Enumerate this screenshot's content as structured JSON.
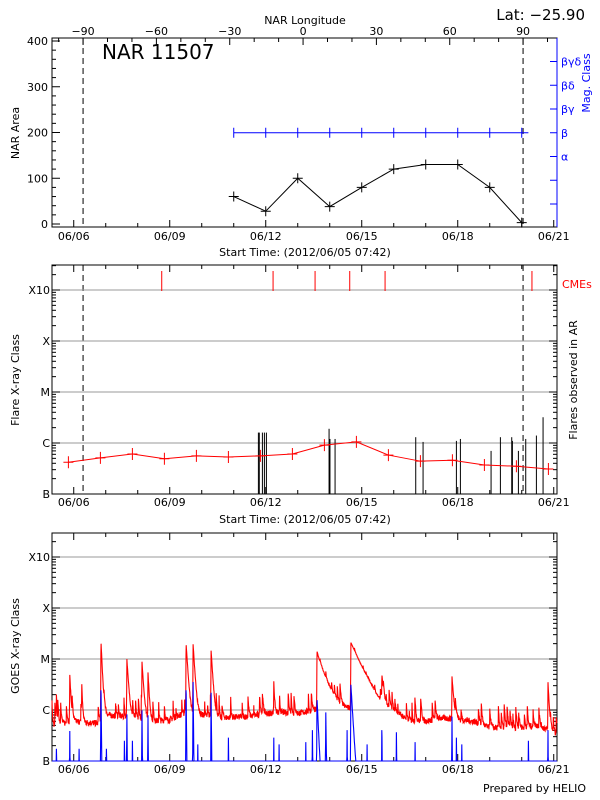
{
  "header": {
    "lat_label": "Lat: −25.90",
    "region_label": "NAR 11507",
    "longitude_axis_label": "NAR Longitude",
    "footer": "Prepared by HELIO"
  },
  "colors": {
    "area": "#000000",
    "mag_class": "#0000ff",
    "flare_mean": "#ff0000",
    "cme": "#ff0000",
    "goes_long": "#ff0000",
    "goes_short": "#0000ff",
    "grid": "#999999"
  },
  "chart_data": [
    {
      "type": "line",
      "ylabel": "NAR Area",
      "xlabel": "Start Time: (2012/06/05 07:42)",
      "right_label": "Mag. Class",
      "x_tick_labels": [
        "06/06",
        "06/09",
        "06/12",
        "06/15",
        "06/18",
        "06/21"
      ],
      "x_range": [
        "2012-06-05T07:42",
        "2012-06-21T02:00"
      ],
      "ylim": [
        0,
        400
      ],
      "y_ticks": [
        0,
        100,
        200,
        300,
        400
      ],
      "longitude_ticks": [
        -90,
        -60,
        -30,
        0,
        30,
        60,
        90
      ],
      "limb_crossings": [
        "2012-06-06T07:00",
        "2012-06-20T01:00"
      ],
      "mag_class_ticks": [
        "",
        "",
        "α",
        "β",
        "βγ",
        "βδ",
        "βγδ"
      ],
      "series": [
        {
          "x": [
            "2012-06-11T00:00",
            "2012-06-12T00:00",
            "2012-06-13T00:00",
            "2012-06-14T00:00",
            "2012-06-15T00:00",
            "2012-06-16T00:00",
            "2012-06-17T00:00",
            "2012-06-18T00:00",
            "2012-06-19T00:00",
            "2012-06-20T00:00"
          ],
          "values": [
            60,
            28,
            100,
            38,
            80,
            120,
            130,
            130,
            80,
            3
          ]
        },
        {
          "x": [
            "2012-06-11T00:00",
            "2012-06-12T00:00",
            "2012-06-13T00:00",
            "2012-06-14T00:00",
            "2012-06-15T00:00",
            "2012-06-16T00:00",
            "2012-06-17T00:00",
            "2012-06-18T00:00",
            "2012-06-19T00:00",
            "2012-06-20T00:00",
            "2012-06-20T05:00"
          ],
          "values": [
            "β",
            "β",
            "β",
            "β",
            "β",
            "β",
            "β",
            "β",
            "β",
            "β",
            "β"
          ]
        }
      ]
    },
    {
      "type": "line",
      "ylabel": "Flare X-ray Class",
      "right_label": "Flares observed in AR",
      "xlabel": "Start Time: (2012/06/05 07:42)",
      "cme_label": "CMEs",
      "y_scale": "log",
      "y_tick_labels": [
        "B",
        "C",
        "M",
        "X",
        "X10"
      ],
      "y_tick_values": [
        1e-07,
        1e-06,
        1e-05,
        0.0001,
        0.001
      ],
      "mean_flare_level": {
        "x": [
          "2012-06-05T20:00",
          "2012-06-06T20:00",
          "2012-06-07T20:00",
          "2012-06-08T20:00",
          "2012-06-09T20:00",
          "2012-06-10T20:00",
          "2012-06-11T20:00",
          "2012-06-12T20:00",
          "2012-06-13T20:00",
          "2012-06-14T20:00",
          "2012-06-15T20:00",
          "2012-06-16T20:00",
          "2012-06-17T20:00",
          "2012-06-18T20:00",
          "2012-06-19T20:00",
          "2012-06-20T20:00"
        ],
        "values": [
          4.2e-07,
          5.1e-07,
          6.1e-07,
          4.9e-07,
          5.6e-07,
          5.3e-07,
          5.6e-07,
          6.1e-07,
          9.1e-07,
          1.05e-06,
          5.8e-07,
          4.4e-07,
          4.6e-07,
          3.7e-07,
          3.5e-07,
          3.1e-07
        ]
      },
      "flares": {
        "x": [
          "2012-06-11T18:30",
          "2012-06-11T19:10",
          "2012-06-11T21:30",
          "2012-06-11T23:00",
          "2012-06-12T00:30",
          "2012-06-13T23:30",
          "2012-06-14T00:10",
          "2012-06-14T04:00",
          "2012-06-16T16:30",
          "2012-06-16T22:00",
          "2012-06-17T23:00",
          "2012-06-18T02:00",
          "2012-06-19T01:00",
          "2012-06-19T08:00",
          "2012-06-19T16:30",
          "2012-06-19T17:00",
          "2012-06-19T21:30",
          "2012-06-20T03:00",
          "2012-06-20T11:00",
          "2012-06-20T16:00"
        ],
        "values": [
          1.6e-06,
          1.6e-06,
          1.6e-06,
          1.6e-06,
          1.6e-06,
          1.9e-06,
          1.2e-06,
          1.2e-06,
          1.3e-06,
          1.05e-06,
          1.1e-06,
          1.2e-06,
          7e-07,
          1.3e-06,
          1.3e-06,
          1.1e-06,
          7e-07,
          1.2e-06,
          1.4e-06,
          3.2e-06
        ]
      },
      "cmes": [
        "2012-06-08T18:00",
        "2012-06-12T05:30",
        "2012-06-13T13:00",
        "2012-06-14T15:00",
        "2012-06-15T17:30",
        "2012-06-20T07:40"
      ],
      "limb_crossings": [
        "2012-06-06T07:00",
        "2012-06-20T01:00"
      ]
    },
    {
      "type": "line",
      "ylabel": "GOES X-ray Class",
      "y_scale": "log",
      "y_tick_labels": [
        "B",
        "C",
        "M",
        "X",
        "X10"
      ],
      "y_tick_values": [
        1e-07,
        1e-06,
        1e-05,
        0.0001,
        0.001
      ],
      "long_channel_baseline": [
        [
          "2012-06-05T07:42",
          5e-07
        ],
        [
          "2012-06-06T00:00",
          6e-07
        ],
        [
          "2012-06-06T18:00",
          5.5e-07
        ],
        [
          "2012-06-07T00:00",
          8e-07
        ],
        [
          "2012-06-08T00:00",
          7e-07
        ],
        [
          "2012-06-08T12:00",
          6e-07
        ],
        [
          "2012-06-09T00:00",
          6.5e-07
        ],
        [
          "2012-06-09T12:00",
          9e-07
        ],
        [
          "2012-06-10T12:00",
          7e-07
        ],
        [
          "2012-06-11T12:00",
          7.5e-07
        ],
        [
          "2012-06-12T00:00",
          8.5e-07
        ],
        [
          "2012-06-12T12:00",
          9e-07
        ],
        [
          "2012-06-13T00:00",
          8.5e-07
        ],
        [
          "2012-06-13T12:00",
          1e-06
        ],
        [
          "2012-06-14T00:00",
          1.1e-06
        ],
        [
          "2012-06-14T12:00",
          1e-06
        ],
        [
          "2012-06-15T06:00",
          1.1e-06
        ],
        [
          "2012-06-15T12:00",
          8e-07
        ],
        [
          "2012-06-16T00:00",
          8e-07
        ],
        [
          "2012-06-16T12:00",
          6e-07
        ],
        [
          "2012-06-17T00:00",
          6e-07
        ],
        [
          "2012-06-17T12:00",
          7e-07
        ],
        [
          "2012-06-18T00:00",
          6.5e-07
        ],
        [
          "2012-06-18T12:00",
          6e-07
        ],
        [
          "2012-06-19T00:00",
          4.5e-07
        ],
        [
          "2012-06-20T00:00",
          4.5e-07
        ],
        [
          "2012-06-20T12:00",
          5e-07
        ],
        [
          "2012-06-21T02:00",
          3.5e-07
        ]
      ],
      "long_channel_peaks": [
        [
          "2012-06-05T11:00",
          1.5e-06,
          1
        ],
        [
          "2012-06-05T21:00",
          4.5e-06,
          1.5
        ],
        [
          "2012-06-06T06:00",
          2.5e-06,
          1
        ],
        [
          "2012-06-06T20:25",
          2.2e-05,
          1.5
        ],
        [
          "2012-06-07T15:50",
          9.5e-06,
          2
        ],
        [
          "2012-06-08T03:10",
          8e-06,
          2
        ],
        [
          "2012-06-08T07:40",
          5e-06,
          1.5
        ],
        [
          "2012-06-09T12:15",
          2e-05,
          2
        ],
        [
          "2012-06-09T17:30",
          1.9e-05,
          2
        ],
        [
          "2012-06-10T07:00",
          1.4e-05,
          2
        ],
        [
          "2012-06-12T06:00",
          2e-06,
          1
        ],
        [
          "2012-06-13T14:25",
          1.25e-05,
          10
        ],
        [
          "2012-06-14T15:50",
          2e-05,
          14
        ],
        [
          "2012-06-15T15:05",
          3.5e-06,
          2
        ],
        [
          "2012-06-17T19:40",
          4e-06,
          2
        ],
        [
          "2012-06-20T19:40",
          3.2e-06,
          1.5
        ]
      ],
      "short_channel_peaks": [
        [
          "2012-06-05T11:00",
          2e-07,
          0.5
        ],
        [
          "2012-06-05T21:00",
          4.8e-07,
          0.5
        ],
        [
          "2012-06-06T04:00",
          2e-07,
          0.5
        ],
        [
          "2012-06-06T20:25",
          4.4e-06,
          0.6
        ],
        [
          "2012-06-07T00:30",
          2e-07,
          0.5
        ],
        [
          "2012-06-07T14:00",
          3e-07,
          0.5
        ],
        [
          "2012-06-07T15:50",
          1e-06,
          0.6
        ],
        [
          "2012-06-07T20:00",
          3e-07,
          0.5
        ],
        [
          "2012-06-08T03:10",
          1.2e-06,
          0.6
        ],
        [
          "2012-06-08T07:40",
          1e-06,
          0.5
        ],
        [
          "2012-06-09T12:15",
          4.4e-06,
          0.6
        ],
        [
          "2012-06-09T17:30",
          4.4e-06,
          0.6
        ],
        [
          "2012-06-09T21:00",
          2.5e-07,
          0.5
        ],
        [
          "2012-06-10T07:00",
          2.7e-06,
          0.6
        ],
        [
          "2012-06-10T20:00",
          3.5e-07,
          0.5
        ],
        [
          "2012-06-12T06:00",
          3.5e-07,
          0.5
        ],
        [
          "2012-06-12T10:00",
          2.5e-07,
          0.5
        ],
        [
          "2012-06-13T06:00",
          2.8e-07,
          0.5
        ],
        [
          "2012-06-13T11:00",
          5e-07,
          0.5
        ],
        [
          "2012-06-13T14:25",
          1.8e-06,
          3
        ],
        [
          "2012-06-13T21:00",
          1e-06,
          1
        ],
        [
          "2012-06-14T13:00",
          5e-07,
          0.5
        ],
        [
          "2012-06-14T15:50",
          3.2e-06,
          4
        ],
        [
          "2012-06-15T04:00",
          2.5e-07,
          0.5
        ],
        [
          "2012-06-15T15:05",
          7e-07,
          0.5
        ],
        [
          "2012-06-16T02:00",
          4.5e-07,
          0.5
        ],
        [
          "2012-06-16T16:00",
          2.8e-07,
          0.5
        ],
        [
          "2012-06-17T19:40",
          9e-07,
          0.6
        ],
        [
          "2012-06-17T23:00",
          3.5e-07,
          0.5
        ],
        [
          "2012-06-18T03:00",
          2.5e-07,
          0.5
        ],
        [
          "2012-06-20T05:00",
          3e-07,
          0.5
        ],
        [
          "2012-06-20T19:40",
          5e-07,
          0.5
        ]
      ]
    }
  ]
}
